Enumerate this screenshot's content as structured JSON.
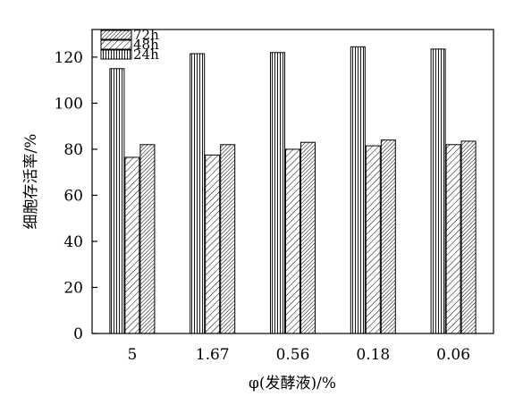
{
  "chart_data": {
    "type": "bar",
    "xlabel": "φ(发酵液)/%",
    "ylabel": "细胞存活率/%",
    "ylim": [
      0,
      132
    ],
    "yticks": [
      0,
      20,
      40,
      60,
      80,
      100,
      120
    ],
    "grid": false,
    "legend_position": "top-left",
    "categories": [
      "5",
      "1.67",
      "0.56",
      "0.18",
      "0.06"
    ],
    "series": [
      {
        "name": "24h",
        "pattern": "vertical-lines",
        "values": [
          115,
          121.5,
          122,
          124.5,
          123.5
        ]
      },
      {
        "name": "48h",
        "pattern": "diagonal-lines",
        "values": [
          76.5,
          77.5,
          80,
          81.5,
          82
        ]
      },
      {
        "name": "72h",
        "pattern": "dense-diagonal-lines",
        "values": [
          82,
          82,
          83,
          84,
          83.5
        ]
      }
    ],
    "legend_order": [
      "72h",
      "48h",
      "24h"
    ]
  }
}
